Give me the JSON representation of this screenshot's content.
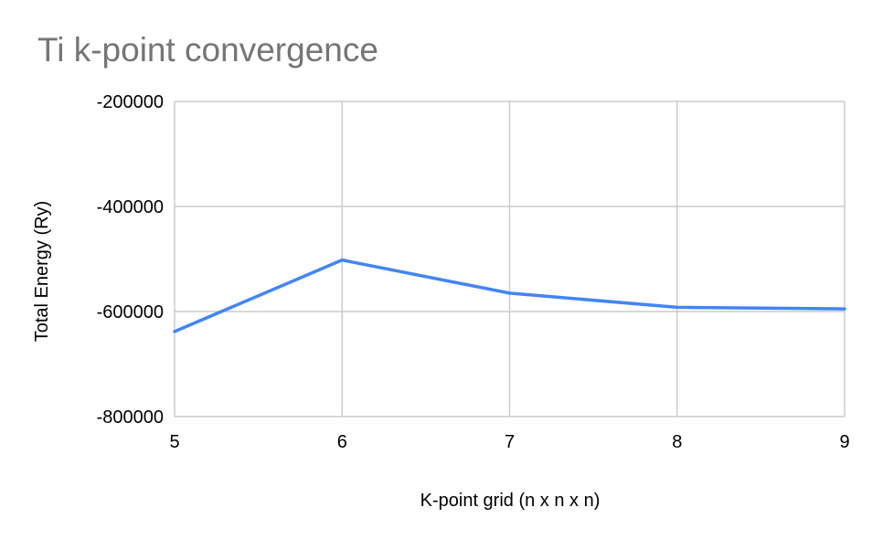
{
  "chart_data": {
    "type": "line",
    "title": "Ti k-point convergence",
    "xlabel": "K-point grid (n x n x n)",
    "ylabel": "Total Energy (Ry)",
    "x": [
      5,
      6,
      7,
      8,
      9
    ],
    "x_tick_labels": [
      "5",
      "6",
      "7",
      "8",
      "9"
    ],
    "xlim": [
      5,
      9
    ],
    "ylim": [
      -800000,
      -200000
    ],
    "y_ticks": [
      -200000,
      -400000,
      -600000,
      -800000
    ],
    "y_tick_labels": [
      "-200000",
      "-400000",
      "-600000",
      "-800000"
    ],
    "series": [
      {
        "values": [
          -638000,
          -502000,
          -565000,
          -592000,
          -595000
        ],
        "color": "#4285f4"
      }
    ],
    "grid": true,
    "legend": "none"
  }
}
